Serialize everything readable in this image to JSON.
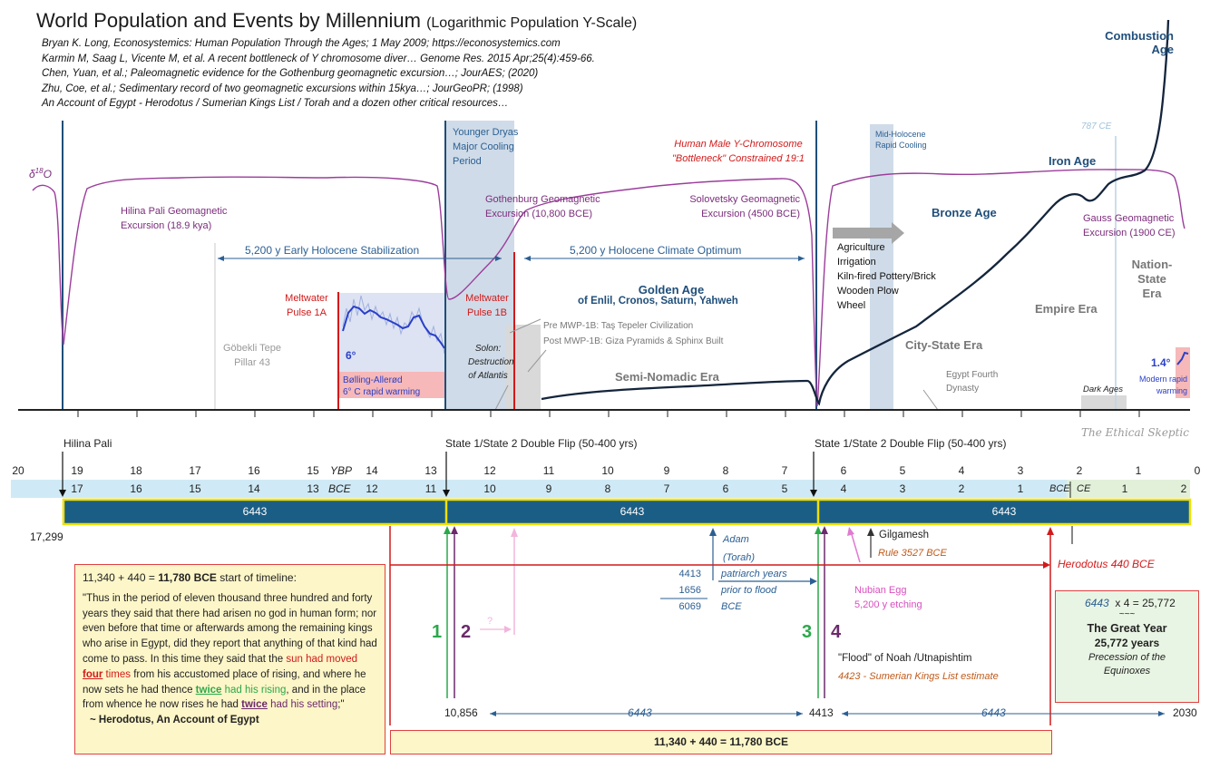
{
  "title": "World Population and Events by Millennium",
  "subtitle": "(Logarithmic Population Y-Scale)",
  "references": [
    "Bryan K. Long, Econosystemics: Human Population Through the Ages; 1 May 2009; https://econosystemics.com",
    "Karmin M, Saag L, Vicente M, et al. A recent bottleneck of Y chromosome diver… Genome Res. 2015 Apr;25(4):459-66.",
    "Chen, Yuan, et al.; Paleomagnetic evidence for the Gothenburg geomagnetic excursion…; JourAES; (2020)",
    "Zhu, Coe, et al.; Sedimentary record of two geomagnetic excursions within 15kya…; JourGeoPR; (1998)",
    "An Account of Egypt - Herodotus / Sumerian Kings List / Torah and a dozen other critical resources…"
  ],
  "labels": {
    "combustion_age": "Combustion",
    "combustion_age2": "Age",
    "iron_age": "Iron Age",
    "bronze_age": "Bronze Age",
    "empire_era": "Empire Era",
    "nation_state1": "Nation-",
    "nation_state2": "State",
    "nation_state3": "Era",
    "city_state_era": "City-State Era",
    "semi_nomadic_era": "Semi-Nomadic Era",
    "golden_age": "Golden Age",
    "golden_age_sub_pre": "of ",
    "golden_age_sub": "Enlil, Cronos, Saturn, Yahweh",
    "d18o": "δ18O",
    "d18o_base": "δ",
    "d18o_sup": "18",
    "d18o_o": "O",
    "hilina_pali_excursion1": "Hilina Pali Geomagnetic",
    "hilina_pali_excursion2": "Excursion (18.9 kya)",
    "younger_dryas1": "Younger Dryas",
    "younger_dryas2": "Major Cooling",
    "younger_dryas3": "Period",
    "y_bottleneck1": "Human Male Y-Chromosome",
    "y_bottleneck2": "\"Bottleneck\" Constrained 19:1",
    "gothenburg1": "Gothenburg Geomagnetic",
    "gothenburg2": "Excursion (10,800 BCE)",
    "solovetsky1": "Solovetsky Geomagnetic",
    "solovetsky2": "Excursion (4500 BCE)",
    "mid_holocene1": "Mid-Holocene",
    "mid_holocene2": "Rapid Cooling",
    "ce787": "787 CE",
    "gauss1": "Gauss Geomagnetic",
    "gauss2": "Excursion (1900 CE)",
    "early_holocene": "5,200 y Early Holocene Stabilization",
    "holocene_optimum": "5,200 y Holocene Climate Optimum",
    "meltwater_1a1": "Meltwater",
    "meltwater_1a2": "Pulse 1A",
    "meltwater_1b1": "Meltwater",
    "meltwater_1b2": "Pulse 1B",
    "gobekli1": "Göbekli Tepe",
    "gobekli2": "Pillar 43",
    "warming_6": "6°",
    "bolling1": "Bølling-Allerød",
    "bolling2": "6° C rapid warming",
    "solon1": "Solon:",
    "solon2": "Destruction",
    "solon3": "of Atlantis",
    "pre_mwp": "Pre MWP-1B: Taş Tepeler Civilization",
    "post_mwp": "Post MWP-1B: Giza Pyramids & Sphinx Built",
    "agriculture": [
      "Agriculture",
      "Irrigation",
      "Kiln-fired Pottery/Brick",
      "Wooden Plow",
      "Wheel"
    ],
    "egypt_fourth1": "Egypt Fourth",
    "egypt_fourth2": "Dynasty",
    "dark_ages": "Dark Ages",
    "warming_14": "1.4°",
    "modern_warming1": "Modern rapid",
    "modern_warming2": "warming",
    "watermark": "The Ethical Skeptic",
    "hilina_pali": "Hilina Pali",
    "double_flip_1": "State 1/State 2 Double Flip (50-400 yrs)",
    "double_flip_2": "State 1/State 2 Double Flip (50-400 yrs)",
    "ybp": "YBP",
    "bce": "BCE",
    "bce2": "BCE",
    "ce": "CE",
    "block_6443_a": "6443",
    "block_6443_b": "6443",
    "block_6443_c": "6443",
    "v17299": "17,299",
    "gilgamesh": "Gilgamesh",
    "rule3527": "Rule 3527 BCE",
    "adam1": "Adam",
    "adam2": "(Torah)",
    "patriarch_num1": "4413",
    "patriarch_num2": "1656",
    "patriarch_num3": "6069",
    "patriarch_t1": "patriarch years",
    "patriarch_t2": "prior to flood",
    "patriarch_t3": "BCE",
    "herodotus440": "Herodotus 440 BCE",
    "nubian1": "Nubian Egg",
    "nubian2": "5,200 y etching",
    "q_mark": "?",
    "num1": "1",
    "num2": "2",
    "num3": "3",
    "num4": "4",
    "flood1": "\"Flood\" of Noah /Utnapishtim",
    "flood2": "4423 - Sumerian Kings List estimate",
    "v10856": "10,856",
    "v4413": "4413",
    "v2030": "2030",
    "span_6443_a": "6443",
    "span_6443_b": "6443",
    "bottom_bar": "11,340 + 440 = 11,780  BCE"
  },
  "ybp_ticks": [
    "20",
    "19",
    "18",
    "17",
    "16",
    "15",
    "14",
    "13",
    "12",
    "11",
    "10",
    "9",
    "8",
    "7",
    "6",
    "5",
    "4",
    "3",
    "2",
    "1",
    "0"
  ],
  "bce_ticks": [
    "17",
    "16",
    "15",
    "14",
    "13",
    "12",
    "11",
    "10",
    "9",
    "8",
    "7",
    "6",
    "5",
    "4",
    "3",
    "2",
    "1"
  ],
  "ce_ticks": [
    "1",
    "2"
  ],
  "quote": {
    "header_pre": "11,340 + 440 = ",
    "header_bold": "11,780  BCE",
    "header_post": " start of timeline:",
    "text_1": "\"Thus in the period of eleven thousand three hundred and forty years they said that there had arisen no god in human form; nor even before that time or afterwards among the remaining kings who arise in Egypt, did they report that anything of that kind had come to pass. In this time they said that the ",
    "sun": "sun",
    "had_moved": " had moved ",
    "four": "four",
    "times": " times",
    "text_2": " from his accustomed place of rising, and where he now sets he had thence ",
    "twice1": "twice",
    "had_his_rising": " had his rising",
    "text_3": ", and in the place from whence he now rises he had ",
    "twice2": "twice",
    "had_his_setting": " had his setting",
    "text_4": ";\"",
    "attribution": "~ Herodotus,  An Account of Egypt"
  },
  "great_year": {
    "calc_a": "6443",
    "calc_op": "x   4 =",
    "calc_result": "25,772",
    "approx": "~~~",
    "title": "The Great Year",
    "years": "25,772  years",
    "caption1": "Precession of the",
    "caption2": "Equinoxes"
  },
  "chart_data": {
    "type": "line",
    "title": "World Population and Events by Millennium",
    "y_scale": "logarithmic",
    "x_unit": "thousand years before present (YBP)",
    "series": [
      {
        "x": [
          4.7,
          4.3,
          4.0,
          3.5,
          3.0,
          2.6,
          2.4,
          2.2,
          2.0,
          1.8,
          1.4,
          1.0,
          0.6,
          0.3,
          0.1,
          0.0
        ],
        "y": [
          0.03,
          0.05,
          0.06,
          0.1,
          0.17,
          0.25,
          0.32,
          0.5,
          0.8,
          1.0,
          0.9,
          1.5,
          2.0,
          2.8,
          6.0,
          9.0
        ]
      }
    ]
  }
}
